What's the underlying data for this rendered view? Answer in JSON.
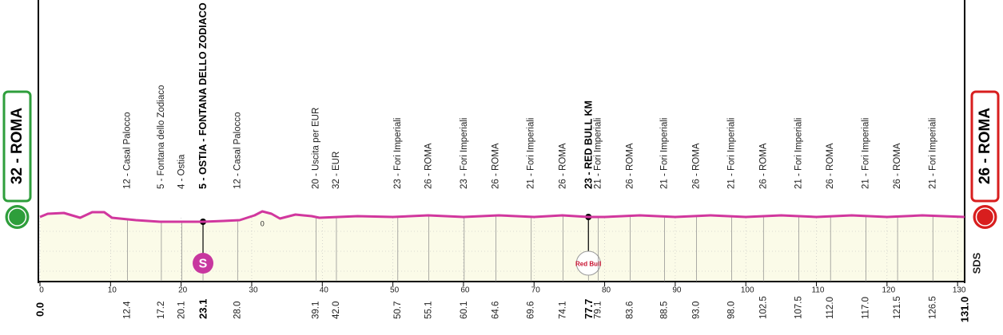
{
  "chart_data": {
    "type": "line",
    "start": {
      "name": "32 - ROMA",
      "km": {
        "value": 0,
        "label": "0.0"
      },
      "color": "#2e9e3b"
    },
    "finish": {
      "name": "26 - ROMA",
      "km": {
        "value": 131,
        "label": "131.0"
      },
      "color": "#d81e1e"
    },
    "x": [
      0,
      1.1,
      3.4,
      5.7,
      7.4,
      9.1,
      10.2,
      13.6,
      17,
      23.1,
      26,
      28.3,
      30.4,
      31.5,
      32.8,
      34,
      36.2,
      38.5,
      39.6,
      45,
      50,
      55,
      60,
      65,
      70,
      74,
      77.7,
      80,
      85,
      90,
      95,
      100,
      105,
      110,
      115,
      120,
      125,
      131
    ],
    "values": [
      32.4,
      34,
      34.4,
      32,
      34.8,
      34.8,
      32,
      30.8,
      30,
      30,
      30.4,
      30.8,
      33.2,
      35.2,
      34,
      31.6,
      33.6,
      32.8,
      32,
      32.8,
      32.4,
      33.2,
      32.4,
      33.2,
      32.4,
      33.2,
      32.4,
      32.4,
      33.2,
      32.4,
      33.2,
      32.4,
      33.2,
      32.4,
      33.2,
      32.4,
      33.2,
      32.4
    ],
    "color": "#d1379e",
    "fill": "#fbfbe8",
    "xlim": [
      0,
      131
    ],
    "ylim": [
      0,
      40
    ],
    "xticks": [
      0,
      10,
      20,
      30,
      40,
      50,
      60,
      70,
      80,
      90,
      100,
      110,
      120,
      130
    ],
    "grid": true,
    "annotations": [
      {
        "text": "0",
        "x": 31.5,
        "y": 29
      }
    ],
    "brand": "SDS",
    "waypoints": [
      {
        "name": "12 - Casal Palocco",
        "km": 12.4
      },
      {
        "name": "5 - Fontana dello Zodiaco",
        "km": 17.2
      },
      {
        "name": "4 - Ostia",
        "km": 20.1
      },
      {
        "name": "5 - OSTIA - FONTANA DELLO ZODIACO",
        "km": 23.1,
        "emphasis": true,
        "marker": "S",
        "marker_color": "#c8379f"
      },
      {
        "name": "12 - Casal Palocco",
        "km": {
          "value": 28,
          "label": "28.0"
        }
      },
      {
        "name": "20 - Uscita per EUR",
        "km": 39.1
      },
      {
        "name": "32 - EUR",
        "km": {
          "value": 42,
          "label": "42.0"
        }
      },
      {
        "name": "23 - Fori Imperiali",
        "km": 50.7
      },
      {
        "name": "26 - ROMA",
        "km": 55.1
      },
      {
        "name": "23 - Fori Imperiali",
        "km": 60.1
      },
      {
        "name": "26 - ROMA",
        "km": 64.6
      },
      {
        "name": "21 - Fori Imperiali",
        "km": 69.6
      },
      {
        "name": "26 - ROMA",
        "km": 74.1
      },
      {
        "name": "23 - RED BULL KM",
        "km": 77.7,
        "emphasis": true,
        "marker": "Red Bull",
        "marker_color": "#ffffff"
      },
      {
        "name": "21 - Fori Imperiali",
        "km": 79.1
      },
      {
        "name": "26 - ROMA",
        "km": 83.6
      },
      {
        "name": "21 - Fori Imperiali",
        "km": 88.5
      },
      {
        "name": "26 - ROMA",
        "km": {
          "value": 93,
          "label": "93.0"
        }
      },
      {
        "name": "21 - Fori Imperiali",
        "km": {
          "value": 98,
          "label": "98.0"
        }
      },
      {
        "name": "26 - ROMA",
        "km": 102.5
      },
      {
        "name": "21 - Fori Imperiali",
        "km": 107.5
      },
      {
        "name": "26 - ROMA",
        "km": {
          "value": 112,
          "label": "112.0"
        }
      },
      {
        "name": "21 - Fori Imperiali",
        "km": {
          "value": 117,
          "label": "117.0"
        }
      },
      {
        "name": "26 - ROMA",
        "km": 121.5
      },
      {
        "name": "21 - Fori Imperiali",
        "km": 126.5
      }
    ]
  }
}
